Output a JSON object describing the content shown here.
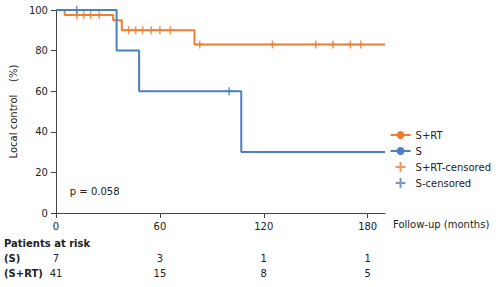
{
  "chart_data": {
    "type": "line",
    "line_style": "step",
    "x_label": "Follow-up (months)",
    "y_label": "Local control    (%)",
    "xlim": [
      0,
      190
    ],
    "xticks": [
      0,
      60,
      120,
      180
    ],
    "ylim": [
      0,
      100
    ],
    "yticks": [
      0,
      20,
      40,
      60,
      80,
      100
    ],
    "grid": false,
    "legend": "right",
    "series": [
      {
        "name": "S+RT",
        "type": "line",
        "color": "#ed7d31",
        "x": [
          0,
          5,
          33,
          38,
          80,
          190
        ],
        "values": [
          100,
          97.5,
          95,
          90,
          83,
          83
        ]
      },
      {
        "name": "S",
        "type": "line",
        "color": "#4a7fc1",
        "x": [
          0,
          35,
          48,
          107,
          190
        ],
        "values": [
          100,
          80,
          60,
          30,
          30
        ]
      },
      {
        "name": "S+RT-censored",
        "type": "scatter",
        "marker": "plus",
        "color": "#ed7d31",
        "x": [
          12,
          16,
          20,
          25,
          42,
          46,
          50,
          55,
          60,
          66,
          83,
          125,
          150,
          160,
          170,
          176
        ],
        "values": [
          97.5,
          97.5,
          97.5,
          97.5,
          90,
          90,
          90,
          90,
          90,
          90,
          83,
          83,
          83,
          83,
          83,
          83
        ]
      },
      {
        "name": "S-censored",
        "type": "scatter",
        "marker": "plus",
        "color": "#4a7fc1",
        "x": [
          12,
          100
        ],
        "values": [
          100,
          60
        ]
      }
    ],
    "annotations": [
      {
        "text": "p = 0.058",
        "x": 8,
        "y": 10
      }
    ],
    "risk_table": {
      "title": "Patients at risk",
      "x": [
        0,
        60,
        120,
        180
      ],
      "rows": [
        {
          "label": "(S)",
          "values": [
            7,
            3,
            1,
            1
          ]
        },
        {
          "label": "(S+RT)",
          "values": [
            41,
            15,
            8,
            5
          ]
        }
      ]
    }
  }
}
